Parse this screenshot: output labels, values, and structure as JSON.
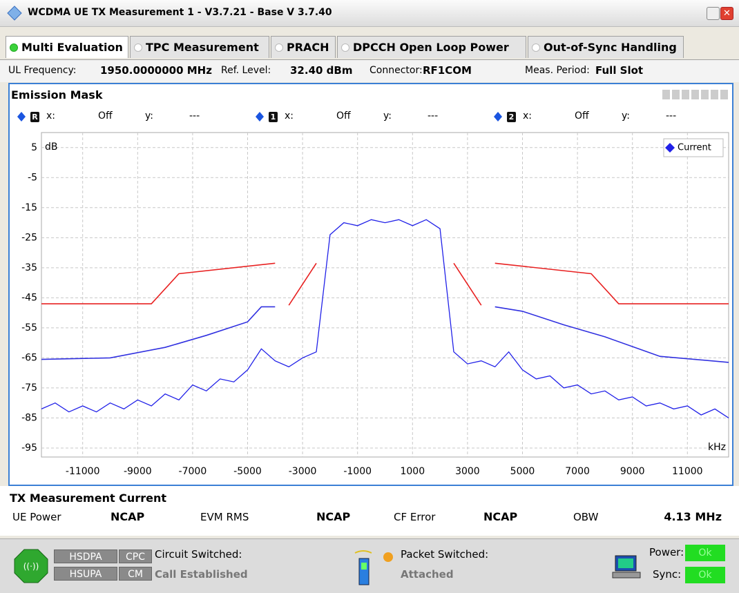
{
  "window": {
    "title": "WCDMA UE TX Measurement 1 - V3.7.21 - Base V 3.7.40"
  },
  "tabs": [
    "Multi Evaluation",
    "TPC Measurement",
    "PRACH",
    "DPCCH Open Loop Power",
    "Out-of-Sync Handling"
  ],
  "info": [
    {
      "label": "UL Frequency:",
      "value": "1950.0000000 MHz"
    },
    {
      "label": "Ref. Level:",
      "value": "32.40 dBm"
    },
    {
      "label": "Connector:",
      "value": "RF1COM"
    },
    {
      "label": "Meas. Period:",
      "value": "Full Slot"
    }
  ],
  "panel": {
    "title": "Emission Mask",
    "markers": [
      {
        "id": "R",
        "x_label": "x:",
        "x": "Off",
        "y_label": "y:",
        "y": "---"
      },
      {
        "id": "1",
        "x_label": "x:",
        "x": "Off",
        "y_label": "y:",
        "y": "---"
      },
      {
        "id": "2",
        "x_label": "x:",
        "x": "Off",
        "y_label": "y:",
        "y": "---"
      }
    ]
  },
  "chart_data": {
    "type": "line",
    "y_unit": "dB",
    "x_unit": "kHz",
    "xlim": [
      -12500,
      12500
    ],
    "ylim": [
      -98,
      10
    ],
    "xticks": [
      -11000,
      -9000,
      -7000,
      -5000,
      -3000,
      -1000,
      1000,
      3000,
      5000,
      7000,
      9000,
      11000
    ],
    "yticks": [
      5,
      -5,
      -15,
      -25,
      -35,
      -45,
      -55,
      -65,
      -75,
      -85,
      -95
    ],
    "grid": true,
    "legend": "upper right",
    "series": [
      {
        "color": "#e82020",
        "x": [
          -12500,
          -8500,
          -7500,
          -4000,
          null,
          -3500,
          -2500,
          null,
          2500,
          3500,
          null,
          4000,
          7500,
          8500,
          12500
        ],
        "values": [
          -47,
          -47,
          -37,
          -33.5,
          null,
          -47.5,
          -33.5,
          null,
          -33.5,
          -47.5,
          null,
          -33.5,
          -37,
          -47,
          -47
        ]
      },
      {
        "color": "#3030e0",
        "x": [
          -12500,
          -10000,
          -8000,
          -6500,
          -5000,
          -4500,
          -4000,
          null,
          4000,
          5000,
          6500,
          8000,
          10000,
          12500
        ],
        "values": [
          -65.5,
          -65,
          -61.5,
          -57.5,
          -53,
          -48,
          -48,
          null,
          -48,
          -49.5,
          -54,
          -58,
          -64.5,
          -66.5
        ]
      },
      {
        "name": "Current",
        "color": "#2020e8",
        "x": [
          -12500,
          -12000,
          -11500,
          -11000,
          -10500,
          -10000,
          -9500,
          -9000,
          -8500,
          -8000,
          -7500,
          -7000,
          -6500,
          -6000,
          -5500,
          -5000,
          -4500,
          -4000,
          -3500,
          -3000,
          -2500,
          -2000,
          -1500,
          -1000,
          -500,
          0,
          500,
          1000,
          1500,
          2000,
          2500,
          3000,
          3500,
          4000,
          4500,
          5000,
          5500,
          6000,
          6500,
          7000,
          7500,
          8000,
          8500,
          9000,
          9500,
          10000,
          10500,
          11000,
          11500,
          12000,
          12500
        ],
        "values": [
          -82,
          -80,
          -83,
          -81,
          -83,
          -80,
          -82,
          -79,
          -81,
          -77,
          -79,
          -74,
          -76,
          -72,
          -73,
          -69,
          -62,
          -66,
          -68,
          -65,
          -63,
          -24,
          -20,
          -21,
          -19,
          -20,
          -19,
          -21,
          -19,
          -22,
          -63,
          -67,
          -66,
          -68,
          -63,
          -69,
          -72,
          -71,
          -75,
          -74,
          -77,
          -76,
          -79,
          -78,
          -81,
          -80,
          -82,
          -81,
          -84,
          -82,
          -85
        ]
      }
    ]
  },
  "results": {
    "title": "TX Measurement Current",
    "items": [
      {
        "label": "UE Power",
        "value": "NCAP"
      },
      {
        "label": "EVM RMS",
        "value": "NCAP"
      },
      {
        "label": "CF Error",
        "value": "NCAP"
      },
      {
        "label": "OBW",
        "value": "4.13 MHz"
      }
    ]
  },
  "status": {
    "badges": [
      "HSDPA",
      "CPC",
      "HSUPA",
      "CM"
    ],
    "circuit": {
      "label": "Circuit Switched:",
      "state": "Call Established"
    },
    "packet": {
      "label": "Packet Switched:",
      "state": "Attached"
    },
    "power": {
      "label": "Power:",
      "state": "Ok"
    },
    "sync": {
      "label": "Sync:",
      "state": "Ok"
    }
  }
}
